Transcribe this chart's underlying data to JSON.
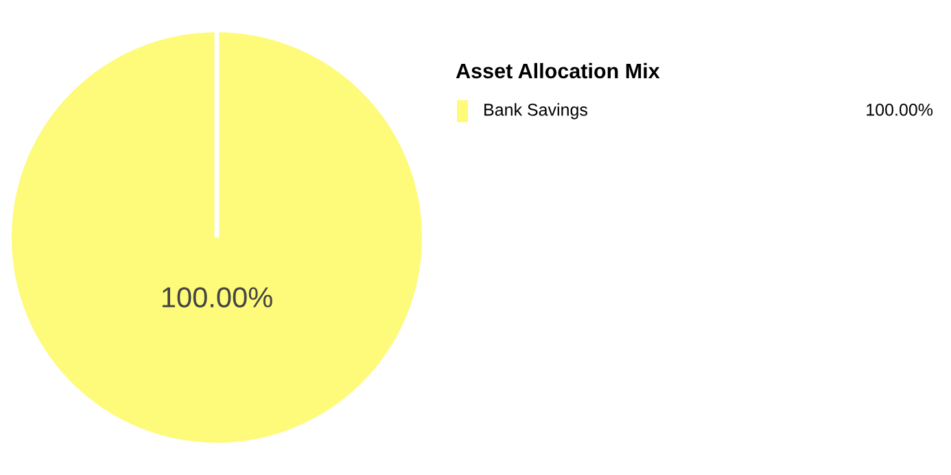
{
  "chart_data": {
    "type": "pie",
    "legend_title": "Asset Allocation Mix",
    "categories": [
      "Bank Savings"
    ],
    "values": [
      100
    ],
    "colors": [
      "#fefa7a"
    ],
    "value_labels": [
      "100.00%"
    ],
    "legend": "right"
  }
}
